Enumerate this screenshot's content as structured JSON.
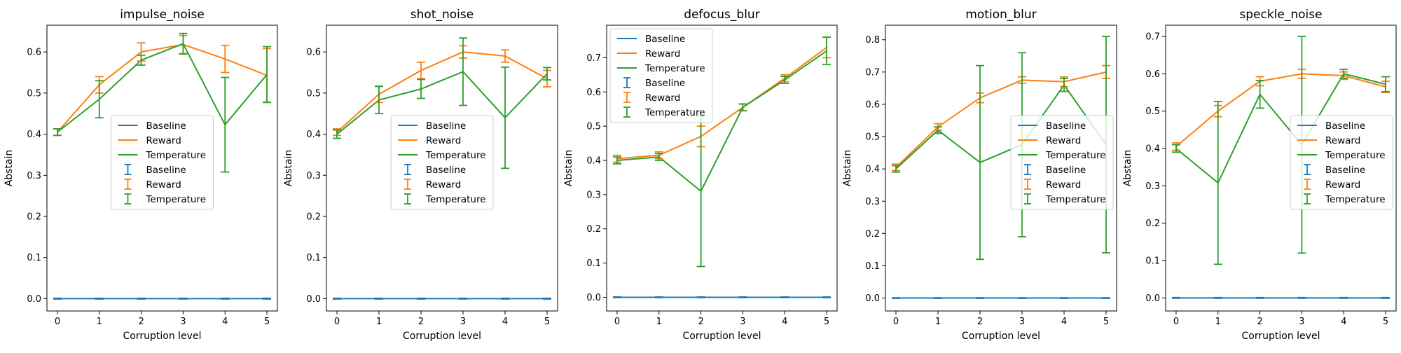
{
  "figure": {
    "xlabel": "Corruption level",
    "ylabel": "Abstain",
    "legend_labels": [
      "Baseline",
      "Reward",
      "Temperature",
      "Baseline",
      "Reward",
      "Temperature"
    ]
  },
  "colors": {
    "Baseline": "#1f77b4",
    "Reward": "#ff7f0e",
    "Temperature": "#2ca02c"
  },
  "chart_data": [
    {
      "type": "line",
      "title": "impulse_noise",
      "xlabel": "Corruption level",
      "ylabel": "Abstain",
      "x": [
        0,
        1,
        2,
        3,
        4,
        5
      ],
      "xlim": [
        -0.25,
        5.25
      ],
      "ylim": [
        -0.03,
        0.665
      ],
      "yticks": [
        0.0,
        0.1,
        0.2,
        0.3,
        0.4,
        0.5,
        0.6
      ],
      "legend_position": "center",
      "series": [
        {
          "name": "Baseline",
          "values": [
            0.0,
            0.0,
            0.0,
            0.0,
            0.0,
            0.0
          ],
          "err": [
            0.001,
            0.001,
            0.001,
            0.001,
            0.001,
            0.001
          ]
        },
        {
          "name": "Reward",
          "values": [
            0.405,
            0.52,
            0.6,
            0.618,
            0.583,
            0.543
          ],
          "err": [
            0.008,
            0.02,
            0.022,
            0.022,
            0.033,
            0.065
          ]
        },
        {
          "name": "Temperature",
          "values": [
            0.405,
            0.485,
            0.58,
            0.62,
            0.423,
            0.545
          ],
          "err": [
            0.008,
            0.045,
            0.012,
            0.025,
            0.115,
            0.068
          ]
        }
      ]
    },
    {
      "type": "line",
      "title": "shot_noise",
      "xlabel": "Corruption level",
      "ylabel": "Abstain",
      "x": [
        0,
        1,
        2,
        3,
        4,
        5
      ],
      "xlim": [
        -0.25,
        5.25
      ],
      "ylim": [
        -0.03,
        0.665
      ],
      "yticks": [
        0.0,
        0.1,
        0.2,
        0.3,
        0.4,
        0.5,
        0.6
      ],
      "legend_position": "center",
      "series": [
        {
          "name": "Baseline",
          "values": [
            0.0,
            0.0,
            0.0,
            0.0,
            0.0,
            0.0
          ],
          "err": [
            0.001,
            0.001,
            0.001,
            0.001,
            0.001,
            0.001
          ]
        },
        {
          "name": "Reward",
          "values": [
            0.405,
            0.497,
            0.555,
            0.6,
            0.59,
            0.535
          ],
          "err": [
            0.008,
            0.02,
            0.02,
            0.015,
            0.015,
            0.02
          ]
        },
        {
          "name": "Temperature",
          "values": [
            0.4,
            0.483,
            0.51,
            0.552,
            0.44,
            0.547
          ],
          "err": [
            0.01,
            0.033,
            0.023,
            0.082,
            0.123,
            0.015
          ]
        }
      ]
    },
    {
      "type": "line",
      "title": "defocus_blur",
      "xlabel": "Corruption level",
      "ylabel": "Abstain",
      "x": [
        0,
        1,
        2,
        3,
        4,
        5
      ],
      "xlim": [
        -0.25,
        5.25
      ],
      "ylim": [
        -0.04,
        0.795
      ],
      "yticks": [
        0.0,
        0.1,
        0.2,
        0.3,
        0.4,
        0.5,
        0.6,
        0.7
      ],
      "legend_position": "upper left",
      "series": [
        {
          "name": "Baseline",
          "values": [
            0.0,
            0.0,
            0.0,
            0.0,
            0.0,
            0.0
          ],
          "err": [
            0.001,
            0.001,
            0.001,
            0.001,
            0.001,
            0.001
          ]
        },
        {
          "name": "Reward",
          "values": [
            0.405,
            0.415,
            0.47,
            0.555,
            0.64,
            0.73
          ],
          "err": [
            0.01,
            0.01,
            0.03,
            0.01,
            0.01,
            0.03
          ]
        },
        {
          "name": "Temperature",
          "values": [
            0.4,
            0.41,
            0.31,
            0.555,
            0.635,
            0.72
          ],
          "err": [
            0.01,
            0.01,
            0.22,
            0.01,
            0.01,
            0.04
          ]
        }
      ]
    },
    {
      "type": "line",
      "title": "motion_blur",
      "xlabel": "Corruption level",
      "ylabel": "Abstain",
      "x": [
        0,
        1,
        2,
        3,
        4,
        5
      ],
      "xlim": [
        -0.25,
        5.25
      ],
      "ylim": [
        -0.04,
        0.845
      ],
      "yticks": [
        0.0,
        0.1,
        0.2,
        0.3,
        0.4,
        0.5,
        0.6,
        0.7,
        0.8
      ],
      "legend_position": "center right",
      "series": [
        {
          "name": "Baseline",
          "values": [
            0.0,
            0.0,
            0.0,
            0.0,
            0.0,
            0.0
          ],
          "err": [
            0.001,
            0.001,
            0.001,
            0.001,
            0.001,
            0.001
          ]
        },
        {
          "name": "Reward",
          "values": [
            0.405,
            0.53,
            0.62,
            0.675,
            0.67,
            0.7
          ],
          "err": [
            0.01,
            0.01,
            0.015,
            0.01,
            0.015,
            0.02
          ]
        },
        {
          "name": "Temperature",
          "values": [
            0.4,
            0.52,
            0.42,
            0.475,
            0.66,
            0.475
          ],
          "err": [
            0.01,
            0.01,
            0.3,
            0.285,
            0.02,
            0.335
          ]
        }
      ]
    },
    {
      "type": "line",
      "title": "speckle_noise",
      "xlabel": "Corruption level",
      "ylabel": "Abstain",
      "x": [
        0,
        1,
        2,
        3,
        4,
        5
      ],
      "xlim": [
        -0.25,
        5.25
      ],
      "ylim": [
        -0.035,
        0.73
      ],
      "yticks": [
        0.0,
        0.1,
        0.2,
        0.3,
        0.4,
        0.5,
        0.6,
        0.7
      ],
      "legend_position": "center right",
      "series": [
        {
          "name": "Baseline",
          "values": [
            0.0,
            0.0,
            0.0,
            0.0,
            0.0,
            0.0
          ],
          "err": [
            0.001,
            0.001,
            0.001,
            0.001,
            0.001,
            0.001
          ]
        },
        {
          "name": "Reward",
          "values": [
            0.405,
            0.5,
            0.58,
            0.6,
            0.595,
            0.565
          ],
          "err": [
            0.01,
            0.015,
            0.012,
            0.012,
            0.01,
            0.015
          ]
        },
        {
          "name": "Temperature",
          "values": [
            0.4,
            0.308,
            0.545,
            0.41,
            0.6,
            0.572
          ],
          "err": [
            0.01,
            0.218,
            0.037,
            0.29,
            0.012,
            0.02
          ]
        }
      ]
    }
  ]
}
